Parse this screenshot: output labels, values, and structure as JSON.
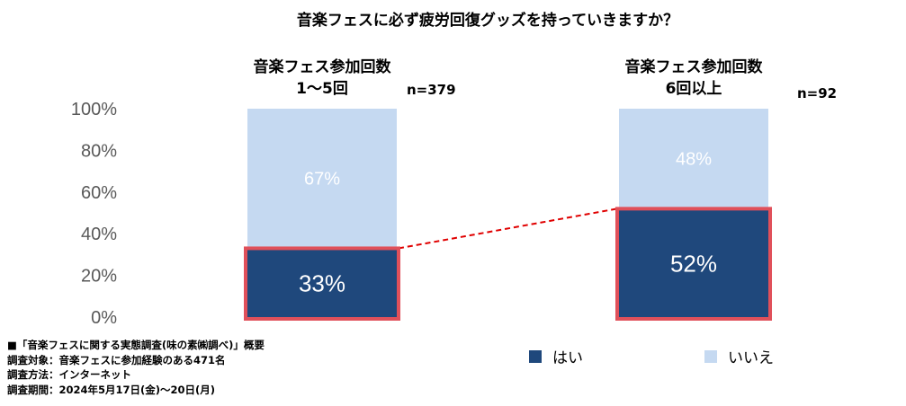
{
  "chart_data": {
    "type": "bar",
    "stacked": true,
    "title": "音楽フェスに必ず疲労回復グッズを持っていきますか？",
    "categories": [
      {
        "lines": [
          "音楽フェス参加回数",
          "1～5回"
        ],
        "n": "n=379"
      },
      {
        "lines": [
          "音楽フェス参加回数",
          "6回以上"
        ],
        "n": "n=92"
      }
    ],
    "series": [
      {
        "name": "はい",
        "color": "#1f487c",
        "values": [
          33,
          52
        ],
        "labels": [
          "33%",
          "52%"
        ]
      },
      {
        "name": "いいえ",
        "color": "#c5d9f1",
        "values": [
          67,
          48
        ],
        "labels": [
          "67%",
          "48%"
        ]
      }
    ],
    "ylim": [
      0,
      100
    ],
    "yticks": [
      "0%",
      "20%",
      "40%",
      "60%",
      "80%",
      "100%"
    ],
    "highlight_color": "#e0505a",
    "connector_color": "#e00000",
    "grid": false,
    "legend_position": "bottom-right"
  },
  "notes": [
    "■「音楽フェスに関する実態調査(味の素㈱調べ)」概要",
    "調査対象：音楽フェスに参加経験のある471名",
    "調査方法：インターネット",
    "調査期間：2024年5月17日(金)～20日(月)"
  ]
}
